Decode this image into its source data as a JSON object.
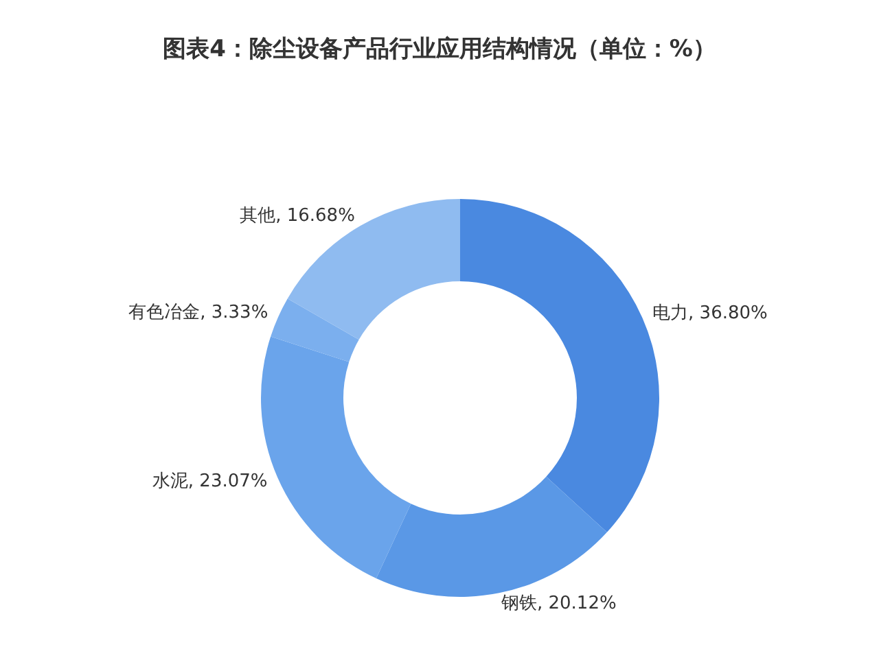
{
  "chart_data": {
    "type": "donut",
    "title": "图表4：除尘设备产品行业应用结构情况（单位：%）",
    "categories": [
      "电力",
      "钢铁",
      "水泥",
      "有色冶金",
      "其他"
    ],
    "values": [
      36.8,
      20.12,
      23.07,
      3.33,
      16.68
    ],
    "value_labels": [
      "36.80%",
      "20.12%",
      "23.07%",
      "3.33%",
      "16.68%"
    ],
    "colors": [
      "#4a89e0",
      "#5a98e6",
      "#6aa4eb",
      "#7bafee",
      "#8fbbf0"
    ]
  }
}
